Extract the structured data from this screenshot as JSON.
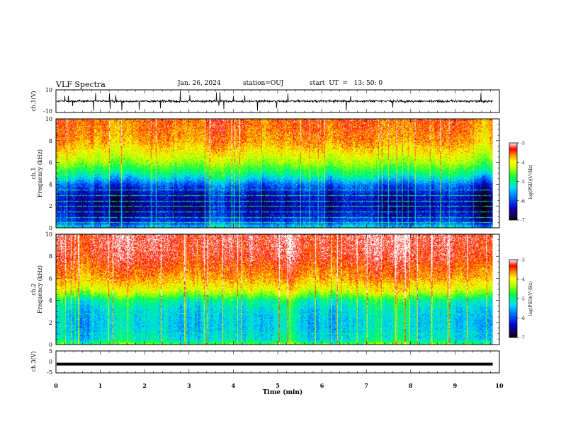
{
  "header": {
    "title": "VLF Spectra",
    "date": "Jan. 26, 2024",
    "station": "station=OUJ",
    "start": "start  UT  =   13: 50: 0"
  },
  "chart_data": [
    {
      "type": "line",
      "id": "ch1-waveform",
      "ylabel": "ch.1(V)",
      "xlim": [
        0,
        10
      ],
      "ylim": [
        -10,
        10
      ],
      "yticks": [
        "10",
        "-10"
      ],
      "baseline": 0,
      "noise_amplitude": 1.5,
      "data_end_min": 9.85
    },
    {
      "type": "heatmap",
      "id": "ch1-spectrogram",
      "ylabel": "ch.1\nFrequency  (kHz)",
      "xlim": [
        0,
        10
      ],
      "ylim": [
        0,
        10
      ],
      "yticks": [
        "0",
        "2",
        "4",
        "6",
        "8",
        "10"
      ],
      "data_end_min": 9.85,
      "colorbar": {
        "label": "log(PSD)(V²/Hz)",
        "range": [
          -7,
          -3
        ],
        "ticks": [
          "-3",
          "-4",
          "-5",
          "-6",
          "-7"
        ]
      },
      "profile_khz": [
        0,
        0.5,
        1,
        2,
        3,
        4,
        4.5,
        5,
        6,
        7,
        8,
        10
      ],
      "profile_logpsd": [
        -5.2,
        -6.0,
        -6.3,
        -6.5,
        -6.4,
        -5.9,
        -5.4,
        -5.0,
        -4.4,
        -4.0,
        -3.7,
        -3.5
      ],
      "lines_khz": [
        0.5,
        1.0,
        1.5,
        2.0,
        2.5,
        3.0,
        3.5
      ]
    },
    {
      "type": "heatmap",
      "id": "ch2-spectrogram",
      "ylabel": "ch.2\nFrequency  (kHz)",
      "xlim": [
        0,
        10
      ],
      "ylim": [
        0,
        10
      ],
      "yticks": [
        "0",
        "2",
        "4",
        "6",
        "8",
        "10"
      ],
      "data_end_min": 9.85,
      "colorbar": {
        "label": "log(PSD)(V²/Hz)",
        "range": [
          -7,
          -3
        ],
        "ticks": [
          "-3",
          "-4",
          "-5",
          "-6",
          "-7"
        ]
      },
      "profile_khz": [
        0,
        0.5,
        1,
        2,
        3,
        4,
        4.5,
        5,
        6,
        8,
        10
      ],
      "profile_logpsd": [
        -4.6,
        -5.2,
        -5.3,
        -5.35,
        -5.3,
        -5.0,
        -4.5,
        -4.1,
        -3.7,
        -3.3,
        -3.2
      ],
      "lines_khz": [
        1.0,
        2.8
      ]
    },
    {
      "type": "line",
      "id": "ch3-waveform",
      "ylabel": "ch.3(V)",
      "xlim": [
        0,
        10
      ],
      "ylim": [
        -5,
        5
      ],
      "yticks": [
        "5",
        "0",
        "-5"
      ],
      "baseline": -1.0,
      "data_end_min": 9.85
    }
  ],
  "xaxis": {
    "label": "Time  (min)",
    "ticks": [
      "0",
      "1",
      "2",
      "3",
      "4",
      "5",
      "6",
      "7",
      "8",
      "9",
      "10"
    ]
  }
}
